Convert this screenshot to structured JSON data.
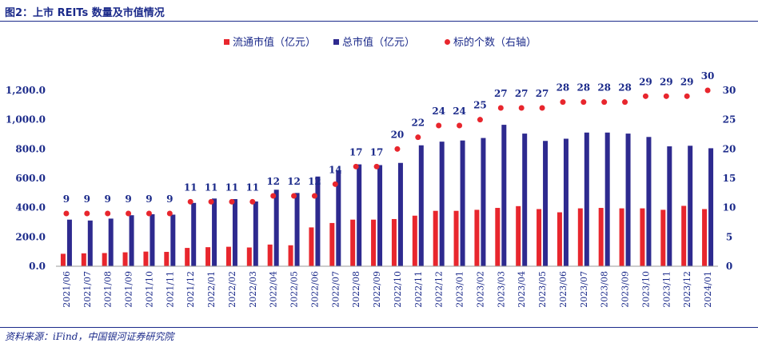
{
  "figure_title": "图2：上市 REITs 数量及市值情况",
  "source_note": "资料来源：iFind，中国银河证券研究院",
  "colors": {
    "circulating": "#e8262d",
    "total": "#2e2a8f",
    "count": "#e8262d",
    "axis_text": "#1b2a8a",
    "rule": "#1b2a8a"
  },
  "chart_data": {
    "type": "bar",
    "categories": [
      "2021/06",
      "2021/07",
      "2021/08",
      "2021/09",
      "2021/10",
      "2021/11",
      "2021/12",
      "2022/01",
      "2022/02",
      "2022/03",
      "2022/04",
      "2022/05",
      "2022/06",
      "2022/07",
      "2022/08",
      "2022/09",
      "2022/10",
      "2022/11",
      "2022/12",
      "2023/01",
      "2023/02",
      "2023/03",
      "2023/04",
      "2023/05",
      "2023/06",
      "2023/07",
      "2023/08",
      "2023/09",
      "2023/10",
      "2023/11",
      "2023/12",
      "2024/01"
    ],
    "series": [
      {
        "name": "流通市值（亿元）",
        "kind": "bar",
        "axis": "left",
        "values": [
          85,
          88,
          90,
          95,
          100,
          98,
          125,
          130,
          133,
          128,
          148,
          143,
          265,
          295,
          318,
          318,
          322,
          345,
          378,
          378,
          385,
          398,
          410,
          390,
          368,
          395,
          398,
          395,
          395,
          385,
          412,
          390
        ]
      },
      {
        "name": "总市值（亿元）",
        "kind": "bar",
        "axis": "left",
        "values": [
          318,
          312,
          325,
          348,
          355,
          352,
          432,
          462,
          458,
          442,
          522,
          500,
          612,
          655,
          695,
          690,
          705,
          825,
          850,
          858,
          875,
          965,
          905,
          855,
          870,
          912,
          912,
          905,
          882,
          818,
          822,
          805
        ]
      },
      {
        "name": "标的个数（右轴）",
        "kind": "scatter",
        "axis": "right",
        "values": [
          9,
          9,
          9,
          9,
          9,
          9,
          11,
          11,
          11,
          11,
          12,
          12,
          12,
          14,
          17,
          17,
          20,
          22,
          24,
          24,
          25,
          27,
          27,
          27,
          28,
          28,
          28,
          28,
          29,
          29,
          29,
          30
        ]
      }
    ],
    "y_left": {
      "min": 0,
      "max": 1200,
      "ticks": [
        "0.0",
        "200.0",
        "400.0",
        "600.0",
        "800.0",
        "1,000.0",
        "1,200.0"
      ]
    },
    "y_right": {
      "min": 0,
      "max": 30,
      "ticks": [
        "0",
        "5",
        "10",
        "15",
        "20",
        "25",
        "30"
      ]
    },
    "legend_position": "top-center",
    "grid": false
  }
}
